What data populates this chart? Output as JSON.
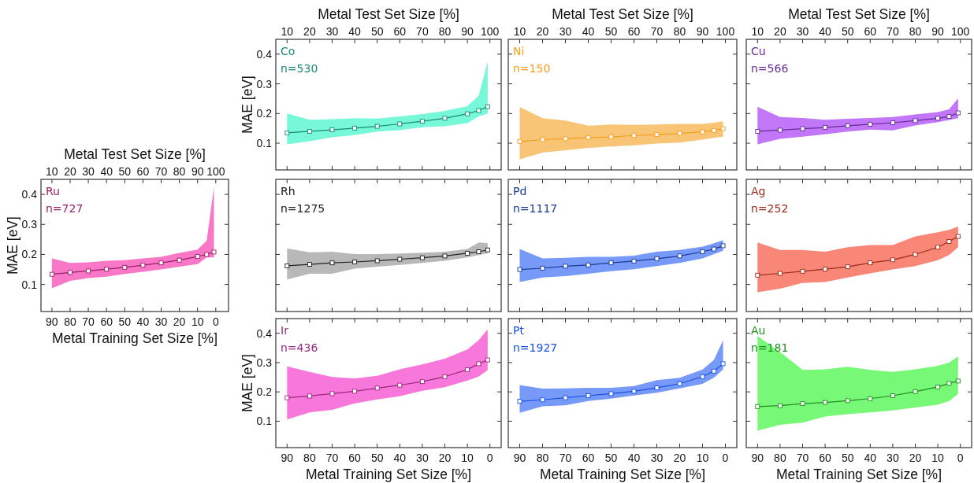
{
  "chart_data": [
    {
      "type": "line",
      "x": [
        90,
        80,
        70,
        60,
        50,
        40,
        30,
        20,
        10,
        5,
        1
      ],
      "xlim": [
        95,
        -5
      ],
      "xticks": [
        90,
        80,
        70,
        60,
        50,
        40,
        30,
        20,
        10,
        0
      ],
      "x2lim": [
        5,
        105
      ],
      "x2ticks": [
        10,
        20,
        30,
        40,
        50,
        60,
        70,
        80,
        90,
        100
      ],
      "x2label": "Metal Test Set Size [%]",
      "ylabel": "MAE [eV]",
      "ylim": [
        0.01,
        0.45
      ],
      "yticks": [
        0.1,
        0.2,
        0.3,
        0.4
      ],
      "tick_labels": "y",
      "marker": "square",
      "annotations": [
        "Co",
        "n=530"
      ],
      "series": [
        {
          "color": "#1a8a6e",
          "values": [
            0.135,
            0.14,
            0.145,
            0.151,
            0.157,
            0.165,
            0.174,
            0.184,
            0.199,
            0.21,
            0.223
          ],
          "lower": [
            0.096,
            0.107,
            0.12,
            0.127,
            0.139,
            0.144,
            0.154,
            0.157,
            0.168,
            0.19,
            0.2
          ],
          "upper": [
            0.2,
            0.179,
            0.181,
            0.184,
            0.183,
            0.19,
            0.198,
            0.209,
            0.225,
            0.26,
            0.375
          ]
        }
      ]
    },
    {
      "type": "line",
      "x": [
        90,
        80,
        70,
        60,
        50,
        40,
        30,
        20,
        10,
        5,
        1
      ],
      "xlim": [
        95,
        -5
      ],
      "xticks": [
        90,
        80,
        70,
        60,
        50,
        40,
        30,
        20,
        10,
        0
      ],
      "x2lim": [
        5,
        105
      ],
      "x2ticks": [
        10,
        20,
        30,
        40,
        50,
        60,
        70,
        80,
        90,
        100
      ],
      "x2label": "Metal Test Set Size [%]",
      "ylim": [
        0.01,
        0.45
      ],
      "yticks": [
        0.1,
        0.2,
        0.3,
        0.4
      ],
      "tick_labels": false,
      "marker": "square",
      "annotations": [
        "Ni",
        "n=150"
      ],
      "series": [
        {
          "color": "#f59e1a",
          "values": [
            0.106,
            0.112,
            0.115,
            0.119,
            0.121,
            0.126,
            0.129,
            0.133,
            0.138,
            0.143,
            0.149
          ],
          "lower": [
            0.046,
            0.068,
            0.076,
            0.084,
            0.089,
            0.093,
            0.099,
            0.102,
            0.112,
            0.118,
            0.122
          ],
          "upper": [
            0.222,
            0.184,
            0.176,
            0.159,
            0.163,
            0.162,
            0.163,
            0.165,
            0.165,
            0.169,
            0.174
          ]
        }
      ]
    },
    {
      "type": "line",
      "x": [
        90,
        80,
        70,
        60,
        50,
        40,
        30,
        20,
        10,
        5,
        1
      ],
      "xlim": [
        95,
        -5
      ],
      "xticks": [
        90,
        80,
        70,
        60,
        50,
        40,
        30,
        20,
        10,
        0
      ],
      "x2lim": [
        5,
        105
      ],
      "x2ticks": [
        10,
        20,
        30,
        40,
        50,
        60,
        70,
        80,
        90,
        100
      ],
      "x2label": "Metal Test Set Size [%]",
      "ylim": [
        0.01,
        0.45
      ],
      "yticks": [
        0.1,
        0.2,
        0.3,
        0.4
      ],
      "tick_labels": false,
      "marker": "square",
      "annotations": [
        "Cu",
        "n=566"
      ],
      "series": [
        {
          "color": "#6a2a9a",
          "values": [
            0.14,
            0.144,
            0.149,
            0.153,
            0.159,
            0.164,
            0.169,
            0.176,
            0.184,
            0.19,
            0.202
          ],
          "lower": [
            0.096,
            0.115,
            0.122,
            0.13,
            0.139,
            0.146,
            0.143,
            0.16,
            0.171,
            0.178,
            0.184
          ],
          "upper": [
            0.223,
            0.188,
            0.185,
            0.179,
            0.182,
            0.185,
            0.188,
            0.197,
            0.205,
            0.214,
            0.251
          ]
        }
      ]
    },
    {
      "type": "line",
      "x": [
        90,
        80,
        70,
        60,
        50,
        40,
        30,
        20,
        10,
        5,
        1
      ],
      "xlim": [
        96,
        -7
      ],
      "xticks": [
        90,
        80,
        70,
        60,
        50,
        40,
        30,
        20,
        10,
        0
      ],
      "x2lim": [
        4,
        107
      ],
      "x2ticks": [
        10,
        20,
        30,
        40,
        50,
        60,
        70,
        80,
        90,
        100
      ],
      "x2label": "Metal Test Set Size [%]",
      "xlabel": "Metal Training Set Size [%]",
      "ylabel": "MAE [eV]",
      "ylim": [
        0.01,
        0.45
      ],
      "yticks": [
        0.1,
        0.2,
        0.3,
        0.4
      ],
      "marker": "square",
      "annotations": [
        "Ru",
        "n=727"
      ],
      "series": [
        {
          "color": "#9a1f6a",
          "values": [
            0.134,
            0.14,
            0.145,
            0.151,
            0.157,
            0.164,
            0.172,
            0.181,
            0.193,
            0.2,
            0.208
          ],
          "lower": [
            0.087,
            0.112,
            0.121,
            0.126,
            0.135,
            0.142,
            0.15,
            0.159,
            0.168,
            0.19,
            0.19
          ],
          "upper": [
            0.187,
            0.172,
            0.174,
            0.179,
            0.181,
            0.187,
            0.192,
            0.205,
            0.216,
            0.246,
            0.424
          ]
        }
      ]
    },
    {
      "type": "line",
      "x": [
        90,
        80,
        70,
        60,
        50,
        40,
        30,
        20,
        10,
        5,
        1
      ],
      "xlim": [
        95,
        -5
      ],
      "xticks": [
        90,
        80,
        70,
        60,
        50,
        40,
        30,
        20,
        10,
        0
      ],
      "ylim": [
        0.01,
        0.45
      ],
      "yticks": [
        0.1,
        0.2,
        0.3,
        0.4
      ],
      "tick_labels": false,
      "marker": "square",
      "annotations": [
        "Rh",
        "n=1275"
      ],
      "series": [
        {
          "color": "#222222",
          "values": [
            0.162,
            0.167,
            0.172,
            0.175,
            0.179,
            0.184,
            0.189,
            0.195,
            0.204,
            0.209,
            0.215
          ],
          "lower": [
            0.117,
            0.136,
            0.136,
            0.153,
            0.159,
            0.165,
            0.172,
            0.179,
            0.19,
            0.198,
            0.204
          ],
          "upper": [
            0.22,
            0.207,
            0.209,
            0.201,
            0.201,
            0.203,
            0.206,
            0.209,
            0.218,
            0.24,
            0.238
          ]
        }
      ]
    },
    {
      "type": "line",
      "x": [
        90,
        80,
        70,
        60,
        50,
        40,
        30,
        20,
        10,
        5,
        1
      ],
      "xlim": [
        95,
        -5
      ],
      "xticks": [
        90,
        80,
        70,
        60,
        50,
        40,
        30,
        20,
        10,
        0
      ],
      "ylim": [
        0.01,
        0.45
      ],
      "yticks": [
        0.1,
        0.2,
        0.3,
        0.4
      ],
      "tick_labels": false,
      "marker": "square",
      "annotations": [
        "Pd",
        "n=1117"
      ],
      "series": [
        {
          "color": "#1a3a96",
          "values": [
            0.15,
            0.154,
            0.161,
            0.165,
            0.172,
            0.178,
            0.186,
            0.195,
            0.209,
            0.218,
            0.229
          ],
          "lower": [
            0.108,
            0.123,
            0.128,
            0.136,
            0.144,
            0.151,
            0.161,
            0.172,
            0.187,
            0.201,
            0.212
          ],
          "upper": [
            0.218,
            0.187,
            0.189,
            0.192,
            0.192,
            0.196,
            0.209,
            0.215,
            0.226,
            0.237,
            0.248
          ]
        }
      ]
    },
    {
      "type": "line",
      "x": [
        90,
        80,
        70,
        60,
        50,
        40,
        30,
        20,
        10,
        5,
        1
      ],
      "xlim": [
        95,
        -5
      ],
      "xticks": [
        90,
        80,
        70,
        60,
        50,
        40,
        30,
        20,
        10,
        0
      ],
      "ylim": [
        0.01,
        0.45
      ],
      "yticks": [
        0.1,
        0.2,
        0.3,
        0.4
      ],
      "tick_labels": false,
      "marker": "square",
      "annotations": [
        "Ag",
        "n=252"
      ],
      "series": [
        {
          "color": "#9a2a1a",
          "values": [
            0.131,
            0.137,
            0.144,
            0.151,
            0.159,
            0.172,
            0.182,
            0.2,
            0.224,
            0.243,
            0.26
          ],
          "lower": [
            0.074,
            0.086,
            0.105,
            0.108,
            0.123,
            0.137,
            0.15,
            0.161,
            0.181,
            0.198,
            0.224
          ],
          "upper": [
            0.24,
            0.215,
            0.215,
            0.209,
            0.224,
            0.231,
            0.231,
            0.26,
            0.274,
            0.282,
            0.293
          ]
        }
      ]
    },
    {
      "type": "line",
      "x": [
        90,
        80,
        70,
        60,
        50,
        40,
        30,
        20,
        10,
        5,
        1
      ],
      "xlim": [
        95,
        -5
      ],
      "xticks": [
        90,
        80,
        70,
        60,
        50,
        40,
        30,
        20,
        10,
        0
      ],
      "xlabel": "Metal Training Set Size [%]",
      "ylabel": "MAE [eV]",
      "ylim": [
        0.01,
        0.45
      ],
      "yticks": [
        0.1,
        0.2,
        0.3,
        0.4
      ],
      "marker": "square",
      "annotations": [
        "Ir",
        "n=436"
      ],
      "series": [
        {
          "color": "#9a2a80",
          "values": [
            0.18,
            0.186,
            0.194,
            0.202,
            0.213,
            0.223,
            0.235,
            0.252,
            0.276,
            0.296,
            0.309
          ],
          "lower": [
            0.106,
            0.13,
            0.139,
            0.161,
            0.174,
            0.185,
            0.204,
            0.216,
            0.239,
            0.252,
            0.274
          ],
          "upper": [
            0.287,
            0.268,
            0.251,
            0.246,
            0.255,
            0.277,
            0.294,
            0.313,
            0.345,
            0.376,
            0.413
          ]
        }
      ]
    },
    {
      "type": "line",
      "x": [
        90,
        80,
        70,
        60,
        50,
        40,
        30,
        20,
        10,
        5,
        1
      ],
      "xlim": [
        95,
        -5
      ],
      "xticks": [
        90,
        80,
        70,
        60,
        50,
        40,
        30,
        20,
        10,
        0
      ],
      "xlabel": "Metal Training Set Size [%]",
      "ylim": [
        0.01,
        0.45
      ],
      "yticks": [
        0.1,
        0.2,
        0.3,
        0.4
      ],
      "tick_labels": "x",
      "marker": "square",
      "annotations": [
        "Pt",
        "n=1927"
      ],
      "series": [
        {
          "color": "#1a50e6",
          "values": [
            0.168,
            0.173,
            0.18,
            0.187,
            0.194,
            0.202,
            0.214,
            0.228,
            0.252,
            0.271,
            0.296
          ],
          "lower": [
            0.129,
            0.151,
            0.154,
            0.169,
            0.177,
            0.188,
            0.197,
            0.212,
            0.227,
            0.249,
            0.276
          ],
          "upper": [
            0.223,
            0.211,
            0.212,
            0.214,
            0.214,
            0.22,
            0.24,
            0.248,
            0.276,
            0.309,
            0.376
          ]
        }
      ]
    },
    {
      "type": "line",
      "x": [
        90,
        80,
        70,
        60,
        50,
        40,
        30,
        20,
        10,
        5,
        1
      ],
      "xlim": [
        95,
        -5
      ],
      "xticks": [
        90,
        80,
        70,
        60,
        50,
        40,
        30,
        20,
        10,
        0
      ],
      "xlabel": "Metal Training Set Size [%]",
      "ylim": [
        0.01,
        0.45
      ],
      "yticks": [
        0.1,
        0.2,
        0.3,
        0.4
      ],
      "tick_labels": "x",
      "marker": "square",
      "annotations": [
        "Au",
        "n=181"
      ],
      "series": [
        {
          "color": "#1f8f1f",
          "values": [
            0.15,
            0.153,
            0.16,
            0.164,
            0.17,
            0.177,
            0.187,
            0.201,
            0.217,
            0.229,
            0.237
          ],
          "lower": [
            0.068,
            0.088,
            0.095,
            0.116,
            0.124,
            0.13,
            0.137,
            0.147,
            0.156,
            0.169,
            0.193
          ],
          "upper": [
            0.39,
            0.336,
            0.275,
            0.277,
            0.286,
            0.275,
            0.268,
            0.277,
            0.289,
            0.3,
            0.321
          ]
        }
      ]
    }
  ]
}
